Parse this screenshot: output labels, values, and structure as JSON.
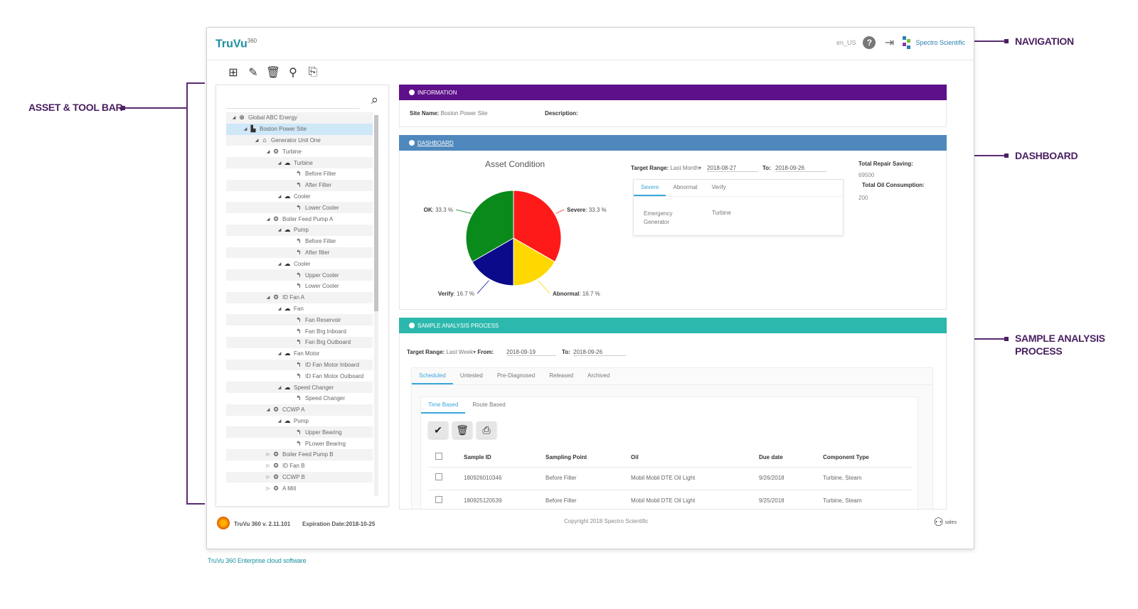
{
  "annotations": {
    "navigation": "NAVIGATION",
    "asset_tool_bar": "ASSET & TOOL BAR",
    "dashboard": "DASHBOARD",
    "sample_analysis_process_line1": "SAMPLE ANALYSIS",
    "sample_analysis_process_line2": "PROCESS"
  },
  "app": {
    "logo": "TruVu",
    "logo_suffix": "360",
    "locale": "en_US",
    "brand": "Spectro Scientific",
    "help_icon": "help-icon",
    "logout_icon": "logout-icon"
  },
  "toolbar": {
    "icons": [
      "add-icon",
      "edit-icon",
      "delete-icon",
      "route-icon",
      "export-icon"
    ]
  },
  "tree": {
    "items": [
      {
        "label": "Global ABC Energy",
        "level": 0,
        "icon": "globe-icon",
        "arrow": "◢"
      },
      {
        "label": "Boston Power Site",
        "level": 1,
        "icon": "factory-icon",
        "arrow": "◢",
        "selected": true
      },
      {
        "label": "Generator Unit One",
        "level": 2,
        "icon": "building-icon",
        "arrow": "◢"
      },
      {
        "label": "Turbine",
        "level": 3,
        "icon": "gear-icon",
        "arrow": "◢"
      },
      {
        "label": "Turbine",
        "level": 4,
        "icon": "component-icon",
        "arrow": "◢"
      },
      {
        "label": "Before Filter",
        "level": 5,
        "icon": "point-icon",
        "arrow": ""
      },
      {
        "label": "After Filter",
        "level": 5,
        "icon": "point-icon",
        "arrow": ""
      },
      {
        "label": "Cooler",
        "level": 4,
        "icon": "component-icon",
        "arrow": "◢"
      },
      {
        "label": "Lower Cooler",
        "level": 5,
        "icon": "point-icon",
        "arrow": ""
      },
      {
        "label": "Boiler Feed Pump A",
        "level": 3,
        "icon": "gear-icon",
        "arrow": "◢"
      },
      {
        "label": "Pump",
        "level": 4,
        "icon": "component-icon",
        "arrow": "◢"
      },
      {
        "label": "Before Filter",
        "level": 5,
        "icon": "point-icon",
        "arrow": ""
      },
      {
        "label": "After filter",
        "level": 5,
        "icon": "point-icon",
        "arrow": ""
      },
      {
        "label": "Cooler",
        "level": 4,
        "icon": "component-icon",
        "arrow": "◢"
      },
      {
        "label": "Upper Cooler",
        "level": 5,
        "icon": "point-icon",
        "arrow": ""
      },
      {
        "label": "Lower Cooler",
        "level": 5,
        "icon": "point-icon",
        "arrow": ""
      },
      {
        "label": "ID Fan A",
        "level": 3,
        "icon": "gear-icon",
        "arrow": "◢"
      },
      {
        "label": "Fan",
        "level": 4,
        "icon": "component-icon",
        "arrow": "◢"
      },
      {
        "label": "Fan Reservoir",
        "level": 5,
        "icon": "point-icon",
        "arrow": ""
      },
      {
        "label": "Fan Brg Inboard",
        "level": 5,
        "icon": "point-icon",
        "arrow": ""
      },
      {
        "label": "Fan Brg Outboard",
        "level": 5,
        "icon": "point-icon",
        "arrow": ""
      },
      {
        "label": "Fan Motor",
        "level": 4,
        "icon": "component-icon",
        "arrow": "◢"
      },
      {
        "label": "ID Fan Motor Inboard",
        "level": 5,
        "icon": "point-icon",
        "arrow": ""
      },
      {
        "label": "ID Fan Motor Outboard",
        "level": 5,
        "icon": "point-icon",
        "arrow": ""
      },
      {
        "label": "Speed Changer",
        "level": 4,
        "icon": "component-icon",
        "arrow": "◢"
      },
      {
        "label": "Speed Changer",
        "level": 5,
        "icon": "point-icon",
        "arrow": ""
      },
      {
        "label": "CCWP A",
        "level": 3,
        "icon": "gear-icon",
        "arrow": "◢"
      },
      {
        "label": "Pump",
        "level": 4,
        "icon": "component-icon",
        "arrow": "◢"
      },
      {
        "label": "Upper Bearing",
        "level": 5,
        "icon": "point-icon",
        "arrow": ""
      },
      {
        "label": "PLower Bearing",
        "level": 5,
        "icon": "point-icon",
        "arrow": ""
      },
      {
        "label": "Boiler Feed Pump B",
        "level": 3,
        "icon": "gear-icon",
        "arrow": "▷"
      },
      {
        "label": "ID Fan B",
        "level": 3,
        "icon": "gear-icon",
        "arrow": "▷"
      },
      {
        "label": "CCWP B",
        "level": 3,
        "icon": "gear-icon",
        "arrow": "▷"
      },
      {
        "label": "A Mill",
        "level": 3,
        "icon": "gear-icon",
        "arrow": "▷"
      }
    ]
  },
  "information": {
    "header": "INFORMATION",
    "site_name_label": "Site Name:",
    "site_name_value": "Boston Power Site",
    "description_label": "Description:"
  },
  "dashboard": {
    "header": "DASHBOARD",
    "chart_title": "Asset Condition",
    "target_range_label": "Target Range:",
    "target_range_value": "Last Month",
    "from_value": "2018-08-27",
    "to_label": "To:",
    "to_value": "2018-09-26",
    "tabs": [
      "Severe",
      "Abnormal",
      "Verify"
    ],
    "table_row": {
      "name": "Emergency Generator",
      "type": "Turbine"
    },
    "total_repair_saving_label": "Total Repair Saving:",
    "total_repair_saving_value": "69500",
    "total_oil_consumption_label": "Total Oil Consumption:",
    "total_oil_consumption_value": "200"
  },
  "chart_data": {
    "type": "pie",
    "title": "Asset Condition",
    "slices": [
      {
        "label": "Severe",
        "value": 33.3,
        "display": "33.3 %",
        "color": "#ff1a1a"
      },
      {
        "label": "Abnormal",
        "value": 16.7,
        "display": "16.7 %",
        "color": "#ffd800"
      },
      {
        "label": "Verify",
        "value": 16.7,
        "display": "16.7 %",
        "color": "#0a0a8a"
      },
      {
        "label": "OK",
        "value": 33.3,
        "display": "33.3 %",
        "color": "#0a8a1a"
      }
    ]
  },
  "sample": {
    "header": "SAMPLE ANALYSIS PROCESS",
    "target_range_label": "Target Range:",
    "target_range_value": "Last Week",
    "from_label": "From:",
    "from_value": "2018-09-19",
    "to_label": "To:",
    "to_value": "2018-09-26",
    "tabs": [
      "Scheduled",
      "Untested",
      "Pre-Diagnosed",
      "Released",
      "Archived"
    ],
    "subtabs": [
      "Time Based",
      "Route Based"
    ],
    "columns": [
      "Sample ID",
      "Sampling Point",
      "Oil",
      "Due date",
      "Component Type"
    ],
    "rows": [
      {
        "id": "180926010346",
        "point": "Before Filter",
        "oil": "Mobil Mobil DTE Oil Light",
        "due": "9/26/2018",
        "type": "Turbine, Steam"
      },
      {
        "id": "180925120539",
        "point": "Before Filter",
        "oil": "Mobil Mobil DTE Oil Light",
        "due": "9/25/2018",
        "type": "Turbine, Steam"
      }
    ]
  },
  "footer": {
    "version": "TruVu 360 v. 2.11.101",
    "expiration": "Expiration Date:2018-10-25",
    "copyright": "Copyright 2018 Spectro Scientific",
    "user": "sales"
  },
  "caption": "TruVu 360 Enterprise cloud software"
}
